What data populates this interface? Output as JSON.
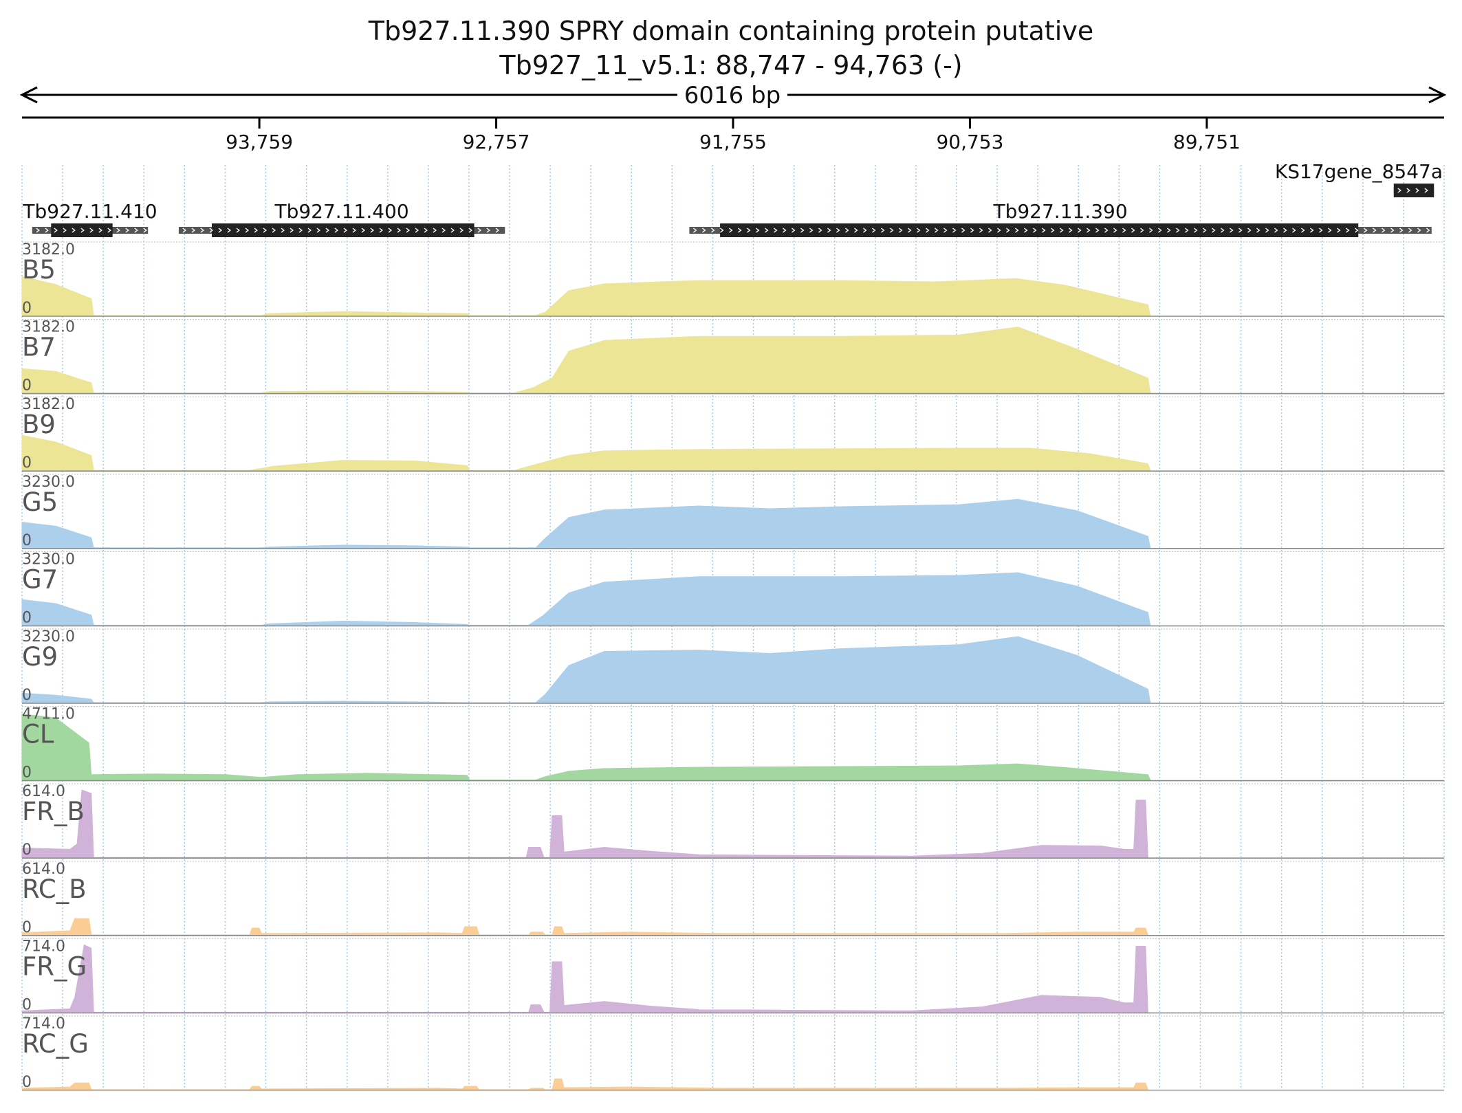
{
  "title_line1": "Tb927.11.390  SPRY domain containing protein  putative",
  "title_line2": "Tb927_11_v5.1: 88,747 - 94,763 (-)",
  "span_label": "6016 bp",
  "chart_data": {
    "type": "area",
    "region": {
      "chrom": "Tb927_11_v5.1",
      "start": 88747,
      "end": 94763,
      "strand": "-",
      "length_bp": 6016
    },
    "axis": {
      "direction": "reversed",
      "ticks": [
        {
          "pos": 93759,
          "label": "93,759"
        },
        {
          "pos": 92757,
          "label": "92,757"
        },
        {
          "pos": 91755,
          "label": "91,755"
        },
        {
          "pos": 90753,
          "label": "90,753"
        },
        {
          "pos": 89751,
          "label": "89,751"
        }
      ]
    },
    "genes": [
      {
        "name": "Tb927.11.410",
        "start": 94230,
        "end": 94720,
        "cds_start": 94380,
        "cds_end": 94640
      },
      {
        "name": "Tb927.11.400",
        "start": 92720,
        "end": 94100,
        "cds_start": 92850,
        "cds_end": 93960
      },
      {
        "name": "Tb927.11.390",
        "start": 88800,
        "end": 91940,
        "cds_start": 89110,
        "cds_end": 91810
      },
      {
        "name": "KS17gene_8547a",
        "start": 88790,
        "end": 88960,
        "cds_start": 88790,
        "cds_end": 88960
      }
    ],
    "tracks": [
      {
        "name": "B5",
        "max": "3182.0",
        "min": "0",
        "color": "#ece596",
        "profile": [
          [
            94763,
            0.58
          ],
          [
            94620,
            0.46
          ],
          [
            94470,
            0.25
          ],
          [
            94460,
            0
          ],
          [
            93750,
            0
          ],
          [
            93720,
            0.03
          ],
          [
            93400,
            0.06
          ],
          [
            93100,
            0.04
          ],
          [
            92880,
            0.03
          ],
          [
            92870,
            0
          ],
          [
            92590,
            0
          ],
          [
            92550,
            0.05
          ],
          [
            92450,
            0.37
          ],
          [
            92300,
            0.47
          ],
          [
            91900,
            0.52
          ],
          [
            91300,
            0.52
          ],
          [
            90900,
            0.5
          ],
          [
            90560,
            0.55
          ],
          [
            90350,
            0.45
          ],
          [
            90000,
            0.16
          ],
          [
            89990,
            0
          ]
        ]
      },
      {
        "name": "B7",
        "max": "3182.0",
        "min": "0",
        "color": "#ece596",
        "profile": [
          [
            94763,
            0.36
          ],
          [
            94620,
            0.32
          ],
          [
            94470,
            0.15
          ],
          [
            94460,
            0
          ],
          [
            93750,
            0
          ],
          [
            93720,
            0.02
          ],
          [
            93400,
            0.03
          ],
          [
            93100,
            0.02
          ],
          [
            92880,
            0.01
          ],
          [
            92870,
            0
          ],
          [
            92680,
            0
          ],
          [
            92600,
            0.08
          ],
          [
            92520,
            0.22
          ],
          [
            92450,
            0.62
          ],
          [
            92300,
            0.78
          ],
          [
            91900,
            0.84
          ],
          [
            91300,
            0.84
          ],
          [
            90800,
            0.86
          ],
          [
            90550,
            0.98
          ],
          [
            90300,
            0.65
          ],
          [
            90000,
            0.22
          ],
          [
            89990,
            0
          ]
        ]
      },
      {
        "name": "B9",
        "max": "3182.0",
        "min": "0",
        "color": "#ece596",
        "profile": [
          [
            94763,
            0.52
          ],
          [
            94620,
            0.42
          ],
          [
            94470,
            0.22
          ],
          [
            94460,
            0
          ],
          [
            93800,
            0
          ],
          [
            93700,
            0.06
          ],
          [
            93400,
            0.15
          ],
          [
            93100,
            0.14
          ],
          [
            92880,
            0.07
          ],
          [
            92870,
            0
          ],
          [
            92680,
            0
          ],
          [
            92620,
            0.06
          ],
          [
            92450,
            0.22
          ],
          [
            92300,
            0.29
          ],
          [
            91900,
            0.31
          ],
          [
            91300,
            0.32
          ],
          [
            90800,
            0.33
          ],
          [
            90500,
            0.33
          ],
          [
            90250,
            0.25
          ],
          [
            90000,
            0.1
          ],
          [
            89990,
            0
          ]
        ]
      },
      {
        "name": "G5",
        "max": "3230.0",
        "min": "0",
        "color": "#acd0ec",
        "profile": [
          [
            94763,
            0.38
          ],
          [
            94620,
            0.32
          ],
          [
            94470,
            0.15
          ],
          [
            94460,
            0
          ],
          [
            93750,
            0
          ],
          [
            93720,
            0.01
          ],
          [
            93400,
            0.04
          ],
          [
            93100,
            0.03
          ],
          [
            92880,
            0.01
          ],
          [
            92870,
            0
          ],
          [
            92590,
            0
          ],
          [
            92550,
            0.14
          ],
          [
            92450,
            0.45
          ],
          [
            92300,
            0.56
          ],
          [
            91900,
            0.62
          ],
          [
            91600,
            0.58
          ],
          [
            91300,
            0.61
          ],
          [
            90800,
            0.64
          ],
          [
            90550,
            0.72
          ],
          [
            90300,
            0.55
          ],
          [
            90000,
            0.17
          ],
          [
            89990,
            0
          ]
        ]
      },
      {
        "name": "G7",
        "max": "3230.0",
        "min": "0",
        "color": "#acd0ec",
        "profile": [
          [
            94763,
            0.38
          ],
          [
            94620,
            0.32
          ],
          [
            94470,
            0.15
          ],
          [
            94460,
            0
          ],
          [
            93750,
            0
          ],
          [
            93720,
            0.02
          ],
          [
            93400,
            0.06
          ],
          [
            93100,
            0.04
          ],
          [
            92880,
            0.01
          ],
          [
            92870,
            0
          ],
          [
            92620,
            0
          ],
          [
            92560,
            0.14
          ],
          [
            92450,
            0.48
          ],
          [
            92300,
            0.64
          ],
          [
            91900,
            0.72
          ],
          [
            91300,
            0.72
          ],
          [
            90800,
            0.74
          ],
          [
            90550,
            0.78
          ],
          [
            90300,
            0.58
          ],
          [
            90000,
            0.19
          ],
          [
            89990,
            0
          ]
        ]
      },
      {
        "name": "G9",
        "max": "3230.0",
        "min": "0",
        "color": "#acd0ec",
        "profile": [
          [
            94763,
            0.14
          ],
          [
            94620,
            0.11
          ],
          [
            94470,
            0.05
          ],
          [
            94460,
            0
          ],
          [
            93750,
            0
          ],
          [
            93720,
            0.01
          ],
          [
            93400,
            0.02
          ],
          [
            93100,
            0.01
          ],
          [
            92870,
            0
          ],
          [
            92590,
            0
          ],
          [
            92550,
            0.12
          ],
          [
            92450,
            0.55
          ],
          [
            92300,
            0.76
          ],
          [
            91900,
            0.78
          ],
          [
            91600,
            0.73
          ],
          [
            91300,
            0.8
          ],
          [
            90800,
            0.86
          ],
          [
            90550,
            0.98
          ],
          [
            90300,
            0.7
          ],
          [
            90000,
            0.2
          ],
          [
            89990,
            0
          ]
        ]
      },
      {
        "name": "CL",
        "max": "4711.0",
        "min": "0",
        "color": "#a2d7a0",
        "profile": [
          [
            94763,
            0.98
          ],
          [
            94620,
            0.92
          ],
          [
            94480,
            0.55
          ],
          [
            94470,
            0.08
          ],
          [
            94200,
            0.09
          ],
          [
            93900,
            0.08
          ],
          [
            93750,
            0.04
          ],
          [
            93600,
            0.08
          ],
          [
            93300,
            0.1
          ],
          [
            92880,
            0.07
          ],
          [
            92870,
            0
          ],
          [
            92590,
            0
          ],
          [
            92550,
            0.05
          ],
          [
            92450,
            0.13
          ],
          [
            92300,
            0.17
          ],
          [
            91900,
            0.19
          ],
          [
            91300,
            0.2
          ],
          [
            90800,
            0.21
          ],
          [
            90550,
            0.24
          ],
          [
            90300,
            0.17
          ],
          [
            90000,
            0.08
          ],
          [
            89990,
            0
          ]
        ]
      },
      {
        "name": "FR_B",
        "max": "614.0",
        "min": "0",
        "color": "#d1b2d8",
        "profile": [
          [
            94763,
            0.14
          ],
          [
            94560,
            0.12
          ],
          [
            94530,
            0.2
          ],
          [
            94510,
            1.0
          ],
          [
            94470,
            0.95
          ],
          [
            94460,
            0
          ],
          [
            92630,
            0
          ],
          [
            92620,
            0.15
          ],
          [
            92570,
            0.15
          ],
          [
            92555,
            0
          ],
          [
            92530,
            0
          ],
          [
            92520,
            0.62
          ],
          [
            92480,
            0.62
          ],
          [
            92470,
            0.08
          ],
          [
            92300,
            0.15
          ],
          [
            92100,
            0.09
          ],
          [
            91900,
            0.04
          ],
          [
            91500,
            0.03
          ],
          [
            91000,
            0.02
          ],
          [
            90700,
            0.06
          ],
          [
            90450,
            0.18
          ],
          [
            90200,
            0.17
          ],
          [
            90100,
            0.12
          ],
          [
            90060,
            0.12
          ],
          [
            90050,
            0.85
          ],
          [
            90010,
            0.85
          ],
          [
            90000,
            0
          ]
        ]
      },
      {
        "name": "RC_B",
        "max": "614.0",
        "min": "0",
        "color": "#f9cd93",
        "profile": [
          [
            94763,
            0.03
          ],
          [
            94560,
            0.06
          ],
          [
            94540,
            0.24
          ],
          [
            94480,
            0.24
          ],
          [
            94470,
            0
          ],
          [
            93800,
            0
          ],
          [
            93790,
            0.1
          ],
          [
            93760,
            0.1
          ],
          [
            93750,
            0.02
          ],
          [
            93000,
            0.03
          ],
          [
            92900,
            0.02
          ],
          [
            92890,
            0.12
          ],
          [
            92840,
            0.12
          ],
          [
            92830,
            0
          ],
          [
            92620,
            0
          ],
          [
            92610,
            0.04
          ],
          [
            92560,
            0.04
          ],
          [
            92550,
            0
          ],
          [
            92520,
            0
          ],
          [
            92510,
            0.12
          ],
          [
            92480,
            0.12
          ],
          [
            92470,
            0.02
          ],
          [
            92200,
            0.04
          ],
          [
            91800,
            0.02
          ],
          [
            91000,
            0.02
          ],
          [
            90600,
            0.02
          ],
          [
            90300,
            0.04
          ],
          [
            90060,
            0.04
          ],
          [
            90050,
            0.1
          ],
          [
            90010,
            0.1
          ],
          [
            90000,
            0
          ]
        ]
      },
      {
        "name": "FR_G",
        "max": "714.0",
        "min": "0",
        "color": "#d1b2d8",
        "profile": [
          [
            94763,
            0.02
          ],
          [
            94560,
            0.05
          ],
          [
            94540,
            0.22
          ],
          [
            94500,
            1.0
          ],
          [
            94470,
            0.95
          ],
          [
            94460,
            0
          ],
          [
            92620,
            0
          ],
          [
            92610,
            0.11
          ],
          [
            92570,
            0.11
          ],
          [
            92555,
            0
          ],
          [
            92530,
            0
          ],
          [
            92520,
            0.75
          ],
          [
            92480,
            0.75
          ],
          [
            92470,
            0.1
          ],
          [
            92300,
            0.16
          ],
          [
            92100,
            0.09
          ],
          [
            91900,
            0.04
          ],
          [
            91500,
            0.03
          ],
          [
            91000,
            0.02
          ],
          [
            90700,
            0.08
          ],
          [
            90450,
            0.25
          ],
          [
            90200,
            0.22
          ],
          [
            90100,
            0.14
          ],
          [
            90060,
            0.14
          ],
          [
            90050,
            0.98
          ],
          [
            90010,
            0.98
          ],
          [
            90000,
            0
          ]
        ]
      },
      {
        "name": "RC_G",
        "max": "714.0",
        "min": "0",
        "color": "#f9cd93",
        "profile": [
          [
            94763,
            0.02
          ],
          [
            94560,
            0.04
          ],
          [
            94540,
            0.1
          ],
          [
            94480,
            0.1
          ],
          [
            94470,
            0
          ],
          [
            93800,
            0
          ],
          [
            93790,
            0.05
          ],
          [
            93760,
            0.05
          ],
          [
            93750,
            0.01
          ],
          [
            93000,
            0.02
          ],
          [
            92900,
            0.01
          ],
          [
            92890,
            0.05
          ],
          [
            92840,
            0.05
          ],
          [
            92830,
            0
          ],
          [
            92620,
            0
          ],
          [
            92610,
            0.02
          ],
          [
            92560,
            0.02
          ],
          [
            92550,
            0
          ],
          [
            92520,
            0
          ],
          [
            92510,
            0.16
          ],
          [
            92480,
            0.16
          ],
          [
            92470,
            0.03
          ],
          [
            92200,
            0.04
          ],
          [
            91800,
            0.02
          ],
          [
            91000,
            0.02
          ],
          [
            90600,
            0.02
          ],
          [
            90300,
            0.03
          ],
          [
            90060,
            0.03
          ],
          [
            90050,
            0.1
          ],
          [
            90010,
            0.1
          ],
          [
            90000,
            0
          ]
        ]
      }
    ]
  }
}
